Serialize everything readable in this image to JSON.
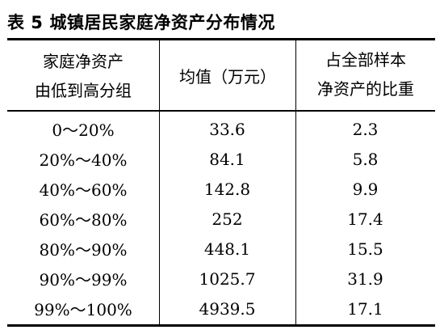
{
  "table": {
    "title_label": "表 5",
    "title_text": "城镇居民家庭净资产分布情况",
    "headers": {
      "group_line1": "家庭净资产",
      "group_line2": "由低到高分组",
      "mean": "均值（万元）",
      "share_line1": "占全部样本",
      "share_line2": "净资产的比重"
    },
    "rows": [
      {
        "group": "0～20%",
        "mean": "33.6",
        "share": "2.3"
      },
      {
        "group": "20%～40%",
        "mean": "84.1",
        "share": "5.8"
      },
      {
        "group": "40%～60%",
        "mean": "142.8",
        "share": "9.9"
      },
      {
        "group": "60%～80%",
        "mean": "252",
        "share": "17.4"
      },
      {
        "group": "80%～90%",
        "mean": "448.1",
        "share": "15.5"
      },
      {
        "group": "90%～99%",
        "mean": "1025.7",
        "share": "31.9"
      },
      {
        "group": "99%～100%",
        "mean": "4939.5",
        "share": "17.1"
      }
    ]
  }
}
